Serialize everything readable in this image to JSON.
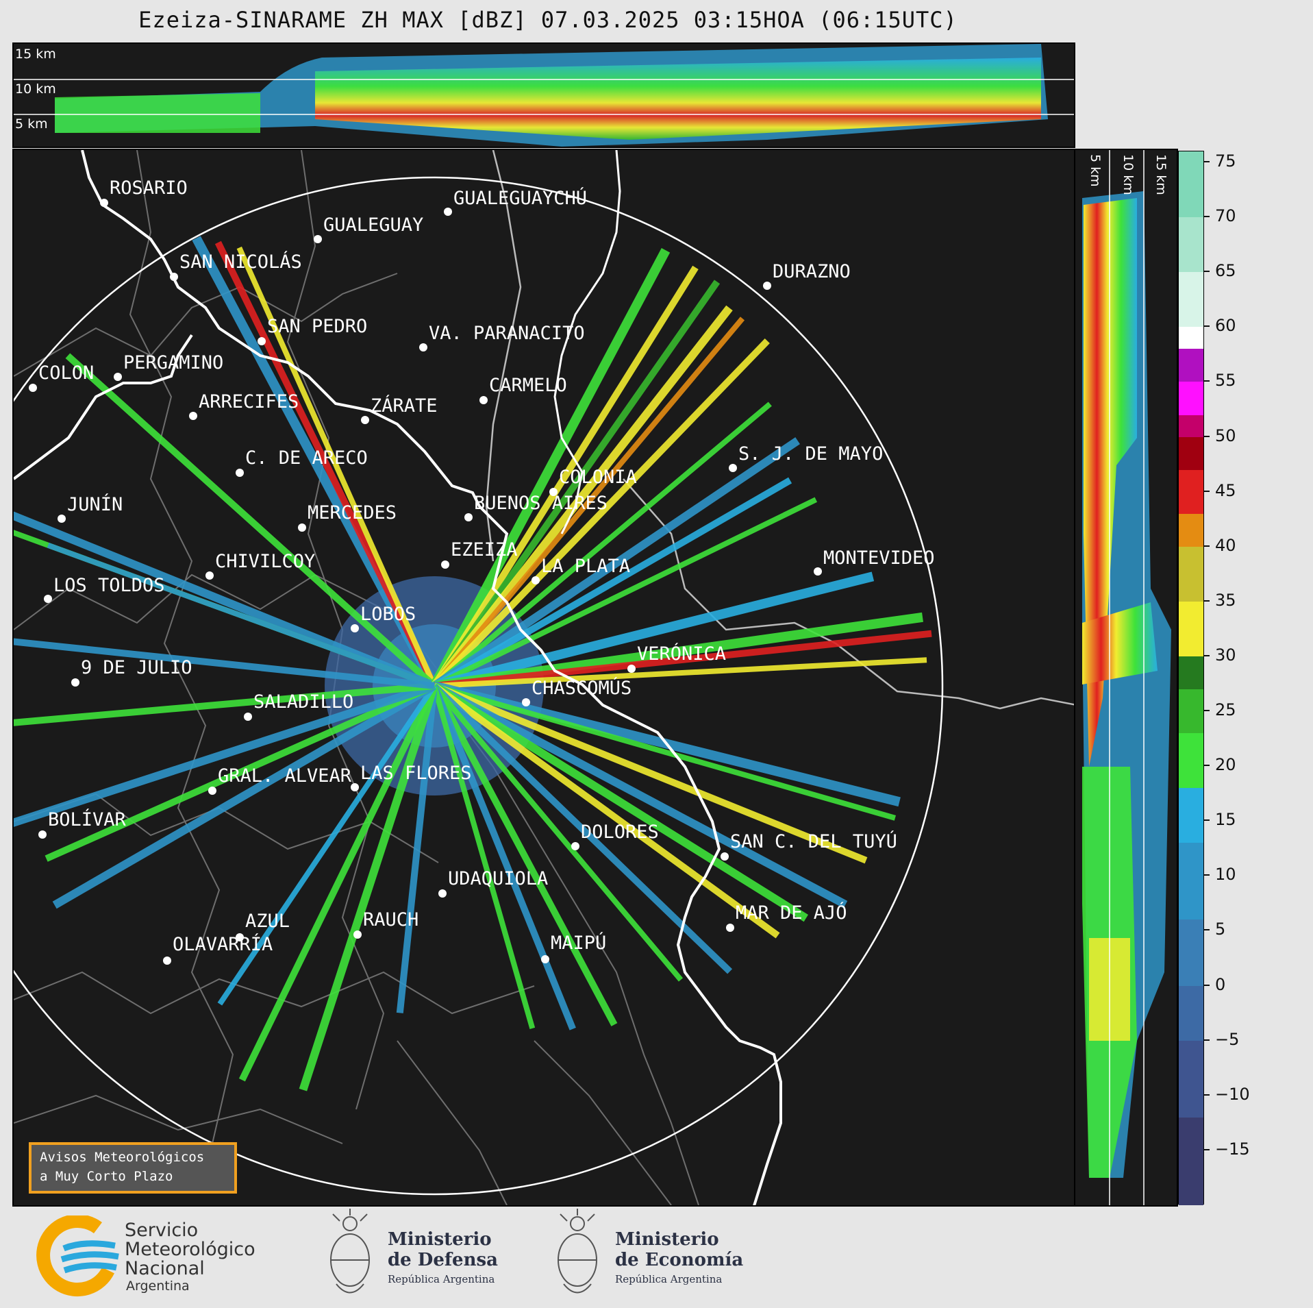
{
  "title": "Ezeiza-SINARAME ZH MAX [dBZ] 07.03.2025 03:15HOA (06:15UTC)",
  "top_strip": {
    "height_labels": [
      "15 km",
      "10 km",
      "5 km"
    ]
  },
  "side_strip": {
    "height_labels": [
      "5 km",
      "10 km",
      "15 km"
    ]
  },
  "colorbar": {
    "ticks": [
      "75",
      "70",
      "65",
      "60",
      "55",
      "50",
      "45",
      "40",
      "35",
      "30",
      "25",
      "20",
      "15",
      "10",
      "5",
      "0",
      "−5",
      "−10",
      "−15"
    ],
    "min": -20,
    "max": 76,
    "stops": [
      {
        "from": -20,
        "color": "#3a3d6e"
      },
      {
        "from": -12,
        "color": "#3f5590"
      },
      {
        "from": -5,
        "color": "#3d6aa5"
      },
      {
        "from": 0,
        "color": "#3a7fb6"
      },
      {
        "from": 6,
        "color": "#2f95c8"
      },
      {
        "from": 13,
        "color": "#29aee0"
      },
      {
        "from": 18,
        "color": "#3ee23a"
      },
      {
        "from": 23,
        "color": "#37b82d"
      },
      {
        "from": 27,
        "color": "#257a1f"
      },
      {
        "from": 30,
        "color": "#f2ec30"
      },
      {
        "from": 35,
        "color": "#c8c030"
      },
      {
        "from": 40,
        "color": "#e48c12"
      },
      {
        "from": 43,
        "color": "#e02020"
      },
      {
        "from": 47,
        "color": "#a00010"
      },
      {
        "from": 50,
        "color": "#c4006a"
      },
      {
        "from": 52,
        "color": "#ff10ff"
      },
      {
        "from": 55,
        "color": "#b010c0"
      },
      {
        "from": 58,
        "color": "#ffffff"
      },
      {
        "from": 60,
        "color": "#d8f4e8"
      },
      {
        "from": 65,
        "color": "#a8e4cc"
      },
      {
        "from": 70,
        "color": "#80d8b8"
      }
    ]
  },
  "cities": [
    {
      "name": "ROSARIO"
    },
    {
      "name": "GUALEGUAYCHÚ"
    },
    {
      "name": "GUALEGUAY"
    },
    {
      "name": "SAN NICOLÁS"
    },
    {
      "name": "DURAZNO"
    },
    {
      "name": "SAN PEDRO"
    },
    {
      "name": "VA. PARANACITO"
    },
    {
      "name": "COLON"
    },
    {
      "name": "PERGAMINO"
    },
    {
      "name": "CARMELO"
    },
    {
      "name": "ARRECIFES"
    },
    {
      "name": "ZÁRATE"
    },
    {
      "name": "S. J. DE MAYO"
    },
    {
      "name": "C. DE ARECO"
    },
    {
      "name": "COLONIA"
    },
    {
      "name": "BUENOS AIRES"
    },
    {
      "name": "JUNÍN"
    },
    {
      "name": "MERCEDES"
    },
    {
      "name": "EZEIZA"
    },
    {
      "name": "MONTEVIDEO"
    },
    {
      "name": "CHIVILCOY"
    },
    {
      "name": "LA PLATA"
    },
    {
      "name": "LOS TOLDOS"
    },
    {
      "name": "LOBOS"
    },
    {
      "name": "VERÓNICA"
    },
    {
      "name": "9 DE JULIO"
    },
    {
      "name": "CHASCOMÚS"
    },
    {
      "name": "SALADILLO"
    },
    {
      "name": "GRAL. ALVEAR"
    },
    {
      "name": "LAS FLORES"
    },
    {
      "name": "BOLÍVAR"
    },
    {
      "name": "DOLORES"
    },
    {
      "name": "SAN C. DEL TUYÚ"
    },
    {
      "name": "UDAQUIOLA"
    },
    {
      "name": "MAR DE AJÓ"
    },
    {
      "name": "AZUL"
    },
    {
      "name": "RAUCH"
    },
    {
      "name": "MAIPÚ"
    },
    {
      "name": "OLAVARRÍA"
    }
  ],
  "aviso": {
    "line1": "Avisos Meteorológicos",
    "line2": "a Muy Corto Plazo"
  },
  "footer": {
    "smn": {
      "line1": "Servicio",
      "line2": "Meteorológico",
      "line3": "Nacional",
      "line4": "Argentina"
    },
    "defensa": {
      "line1": "Ministerio",
      "line2": "de Defensa",
      "line3": "República Argentina"
    },
    "economia": {
      "line1": "Ministerio",
      "line2": "de Economía",
      "line3": "República Argentina"
    }
  }
}
